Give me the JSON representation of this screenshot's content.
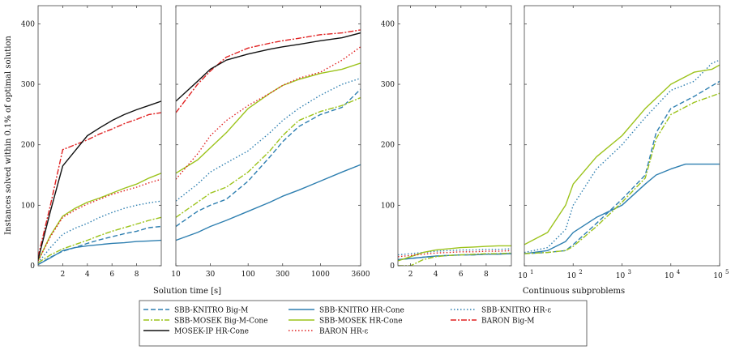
{
  "figure": {
    "ylabel": "Instances solved within 0.1% of optimal solution",
    "xlabel_left": "Solution time [s]",
    "xlabel_right": "Continuous subproblems"
  },
  "chart_data": [
    {
      "type": "line",
      "panel": "time-linear",
      "xlim": [
        0,
        10
      ],
      "ylim": [
        0,
        430
      ],
      "x_ticks": [
        2,
        4,
        6,
        8
      ],
      "y_ticks": [
        0,
        100,
        200,
        300,
        400
      ],
      "series": [
        {
          "key": "sbbk_bigm",
          "x": [
            0,
            1,
            2,
            3,
            4,
            5,
            6,
            7,
            8,
            9,
            10
          ],
          "y": [
            2,
            14,
            24,
            30,
            37,
            43,
            48,
            53,
            57,
            63,
            65
          ]
        },
        {
          "key": "sbbk_hrcone",
          "x": [
            0,
            1,
            2,
            3,
            4,
            5,
            6,
            7,
            8,
            9,
            10
          ],
          "y": [
            2,
            13,
            25,
            30,
            33,
            35,
            37,
            38,
            40,
            41,
            42
          ]
        },
        {
          "key": "sbbk_hreps",
          "x": [
            0,
            1,
            2,
            3,
            4,
            5,
            6,
            7,
            8,
            9,
            10
          ],
          "y": [
            5,
            30,
            52,
            62,
            70,
            80,
            88,
            95,
            100,
            104,
            107
          ]
        },
        {
          "key": "sbbm_bigmcone",
          "x": [
            0,
            1,
            2,
            3,
            4,
            5,
            6,
            7,
            8,
            9,
            10
          ],
          "y": [
            5,
            18,
            28,
            35,
            42,
            50,
            57,
            63,
            69,
            75,
            80
          ]
        },
        {
          "key": "sbbm_hrcone",
          "x": [
            0,
            1,
            2,
            3,
            4,
            5,
            6,
            7,
            8,
            9,
            10
          ],
          "y": [
            8,
            50,
            82,
            95,
            105,
            112,
            120,
            128,
            135,
            145,
            153
          ]
        },
        {
          "key": "baron_bigm",
          "x": [
            0,
            1,
            2,
            3,
            4,
            5,
            6,
            7,
            8,
            9,
            10
          ],
          "y": [
            15,
            100,
            192,
            200,
            208,
            218,
            226,
            235,
            242,
            250,
            253
          ]
        },
        {
          "key": "mosekip_hrcone",
          "x": [
            0,
            1,
            2,
            3,
            4,
            5,
            6,
            7,
            8,
            9,
            10
          ],
          "y": [
            10,
            90,
            165,
            190,
            215,
            228,
            240,
            250,
            258,
            265,
            272
          ]
        },
        {
          "key": "baron_hreps",
          "x": [
            0,
            1,
            2,
            3,
            4,
            5,
            6,
            7,
            8,
            9,
            10
          ],
          "y": [
            8,
            48,
            80,
            92,
            102,
            110,
            118,
            124,
            130,
            137,
            143
          ]
        }
      ]
    },
    {
      "type": "line",
      "panel": "time-log",
      "xscale": "log",
      "xlim": [
        10,
        3600
      ],
      "ylim": [
        0,
        430
      ],
      "x_ticks": [
        10,
        30,
        100,
        300,
        1000,
        3600
      ],
      "series": [
        {
          "key": "sbbk_bigm",
          "x": [
            10,
            20,
            30,
            50,
            100,
            200,
            300,
            500,
            1000,
            2000,
            3600
          ],
          "y": [
            65,
            90,
            100,
            110,
            140,
            180,
            205,
            230,
            250,
            262,
            292
          ]
        },
        {
          "key": "sbbk_hrcone",
          "x": [
            10,
            20,
            30,
            50,
            100,
            200,
            300,
            500,
            1000,
            2000,
            3600
          ],
          "y": [
            42,
            55,
            65,
            75,
            90,
            105,
            115,
            125,
            140,
            155,
            167
          ]
        },
        {
          "key": "sbbk_hreps",
          "x": [
            10,
            20,
            30,
            50,
            100,
            200,
            300,
            500,
            1000,
            2000,
            3600
          ],
          "y": [
            107,
            135,
            155,
            170,
            190,
            220,
            240,
            260,
            282,
            300,
            310
          ]
        },
        {
          "key": "sbbm_bigmcone",
          "x": [
            10,
            20,
            30,
            50,
            100,
            200,
            300,
            500,
            1000,
            2000,
            3600
          ],
          "y": [
            80,
            105,
            120,
            130,
            155,
            190,
            215,
            240,
            255,
            265,
            278
          ]
        },
        {
          "key": "sbbm_hrcone",
          "x": [
            10,
            20,
            30,
            50,
            100,
            200,
            300,
            500,
            1000,
            2000,
            3600
          ],
          "y": [
            153,
            175,
            195,
            220,
            260,
            285,
            298,
            308,
            318,
            325,
            335
          ]
        },
        {
          "key": "baron_bigm",
          "x": [
            10,
            20,
            30,
            50,
            100,
            200,
            300,
            500,
            1000,
            2000,
            3600
          ],
          "y": [
            253,
            300,
            322,
            345,
            360,
            368,
            372,
            376,
            382,
            385,
            390
          ]
        },
        {
          "key": "mosekip_hrcone",
          "x": [
            10,
            20,
            30,
            50,
            100,
            200,
            300,
            500,
            1000,
            2000,
            3600
          ],
          "y": [
            272,
            305,
            325,
            340,
            350,
            358,
            362,
            366,
            372,
            377,
            385
          ]
        },
        {
          "key": "baron_hreps",
          "x": [
            10,
            20,
            30,
            50,
            100,
            200,
            300,
            500,
            1000,
            2000,
            3600
          ],
          "y": [
            143,
            185,
            215,
            240,
            265,
            285,
            298,
            310,
            320,
            340,
            362
          ]
        }
      ]
    },
    {
      "type": "line",
      "panel": "subproblems-linear",
      "xlim": [
        1,
        10
      ],
      "ylim": [
        0,
        430
      ],
      "x_ticks": [
        2,
        4,
        6,
        8
      ],
      "y_ticks": [
        0,
        100,
        200,
        300,
        400
      ],
      "series": [
        {
          "key": "sbbk_bigm",
          "x": [
            1,
            2,
            3,
            4,
            5,
            6,
            7,
            8,
            9,
            10
          ],
          "y": [
            10,
            12,
            14,
            16,
            17,
            18,
            18,
            19,
            20,
            20
          ]
        },
        {
          "key": "sbbk_hrcone",
          "x": [
            1,
            2,
            3,
            4,
            5,
            6,
            7,
            8,
            9,
            10
          ],
          "y": [
            10,
            12,
            14,
            16,
            17,
            18,
            18,
            19,
            19,
            20
          ]
        },
        {
          "key": "sbbk_hreps",
          "x": [
            1,
            2,
            3,
            4,
            5,
            6,
            7,
            8,
            9,
            10
          ],
          "y": [
            18,
            20,
            22,
            24,
            25,
            26,
            26,
            27,
            27,
            28
          ]
        },
        {
          "key": "sbbm_bigmcone",
          "x": [
            1,
            2,
            3,
            4,
            5,
            6,
            7,
            8,
            9,
            10
          ],
          "y": [
            0,
            0,
            10,
            15,
            17,
            18,
            19,
            20,
            20,
            21
          ]
        },
        {
          "key": "sbbm_hrcone",
          "x": [
            1,
            2,
            3,
            4,
            5,
            6,
            7,
            8,
            9,
            10
          ],
          "y": [
            8,
            15,
            22,
            26,
            28,
            30,
            31,
            32,
            33,
            33
          ]
        },
        {
          "key": "baron_hreps",
          "x": [
            1,
            2,
            3,
            4,
            5,
            6,
            7,
            8,
            9,
            10
          ],
          "y": [
            15,
            17,
            19,
            21,
            22,
            23,
            23,
            24,
            24,
            25
          ]
        }
      ]
    },
    {
      "type": "line",
      "panel": "subproblems-log",
      "xscale": "log",
      "xlim": [
        10,
        100000
      ],
      "ylim": [
        0,
        430
      ],
      "x_ticks": [
        10,
        100,
        1000,
        10000,
        100000
      ],
      "x_tick_labels": [
        [
          "10",
          "1"
        ],
        [
          "10",
          "2"
        ],
        [
          "10",
          "3"
        ],
        [
          "10",
          "4"
        ],
        [
          "10",
          "5"
        ]
      ],
      "series": [
        {
          "key": "sbbk_bigm",
          "x": [
            10,
            30,
            70,
            100,
            300,
            1000,
            3000,
            5000,
            10000,
            30000,
            100000
          ],
          "y": [
            20,
            22,
            25,
            35,
            70,
            110,
            150,
            220,
            260,
            280,
            305
          ]
        },
        {
          "key": "sbbk_hrcone",
          "x": [
            10,
            30,
            70,
            100,
            300,
            1000,
            3000,
            5000,
            10000,
            20000,
            100000
          ],
          "y": [
            20,
            25,
            40,
            55,
            80,
            100,
            135,
            150,
            160,
            168,
            168
          ]
        },
        {
          "key": "sbbk_hreps",
          "x": [
            10,
            30,
            70,
            100,
            300,
            1000,
            3000,
            10000,
            30000,
            70000,
            100000
          ],
          "y": [
            22,
            30,
            60,
            100,
            160,
            200,
            245,
            290,
            305,
            335,
            340
          ]
        },
        {
          "key": "sbbm_bigmcone",
          "x": [
            10,
            30,
            70,
            100,
            300,
            1000,
            3000,
            5000,
            10000,
            30000,
            100000
          ],
          "y": [
            20,
            22,
            25,
            32,
            65,
            105,
            145,
            210,
            250,
            270,
            285
          ]
        },
        {
          "key": "sbbm_hrcone",
          "x": [
            10,
            30,
            70,
            100,
            300,
            1000,
            3000,
            10000,
            30000,
            70000,
            100000
          ],
          "y": [
            35,
            55,
            100,
            135,
            180,
            215,
            260,
            300,
            320,
            325,
            332
          ]
        }
      ]
    }
  ],
  "legend": {
    "items": [
      {
        "key": "sbbk_bigm",
        "label": "SBB-KNITRO Big-M",
        "color": "#2e7fb0",
        "dash": "6,3"
      },
      {
        "key": "sbbk_hrcone",
        "label": "SBB-KNITRO HR-Cone",
        "color": "#2e7fb0",
        "dash": ""
      },
      {
        "key": "sbbk_hreps",
        "label": "SBB-KNITRO HR-ε",
        "color": "#2e7fb0",
        "dash": "1.5,2.5"
      },
      {
        "key": "sbbm_bigmcone",
        "label": "SBB-MOSEK Big-M-Cone",
        "color": "#9cc31b",
        "dash": "7,2,2,2"
      },
      {
        "key": "sbbm_hrcone",
        "label": "SBB-MOSEK HR-Cone",
        "color": "#9cc31b",
        "dash": ""
      },
      {
        "key": "baron_bigm",
        "label": "BARON Big-M",
        "color": "#e02020",
        "dash": "7,2,2,2"
      },
      {
        "key": "mosekip_hrcone",
        "label": "MOSEK-IP HR-Cone",
        "color": "#111111",
        "dash": ""
      },
      {
        "key": "baron_hreps",
        "label": "BARON HR-ε",
        "color": "#e02020",
        "dash": "1.5,2.5"
      }
    ]
  }
}
